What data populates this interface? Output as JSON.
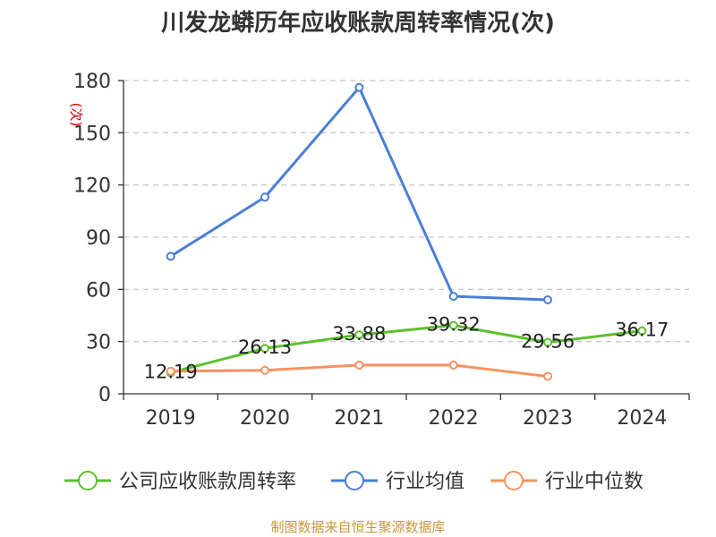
{
  "colors": {
    "series": [
      "#5bc12b",
      "#4a7fd6",
      "#f5925e"
    ],
    "axis": "#333333",
    "grid": "#c8c8c8",
    "ylabel": "#cc0000",
    "source": "#c8963c"
  },
  "chart_data": {
    "type": "line",
    "title": "川发龙蟒历年应收账款周转率情况(次)",
    "ylabel": "(次)",
    "xlabel": "",
    "categories": [
      "2019",
      "2020",
      "2021",
      "2022",
      "2023",
      "2024"
    ],
    "ylim": [
      0,
      180
    ],
    "yticks": [
      0,
      30,
      60,
      90,
      120,
      150,
      180
    ],
    "grid": true,
    "legend_position": "bottom",
    "series": [
      {
        "name": "公司应收账款周转率",
        "values": [
          12.19,
          26.13,
          33.88,
          39.32,
          29.56,
          36.17
        ],
        "labels": [
          "12.19",
          "26.13",
          "33.88",
          "39.32",
          "29.56",
          "36.17"
        ]
      },
      {
        "name": "行业均值",
        "values": [
          79,
          113,
          176,
          56,
          54,
          null
        ]
      },
      {
        "name": "行业中位数",
        "values": [
          13,
          13.5,
          16.5,
          16.5,
          10,
          null
        ]
      }
    ]
  },
  "source_text": "制图数据来自恒生聚源数据库"
}
